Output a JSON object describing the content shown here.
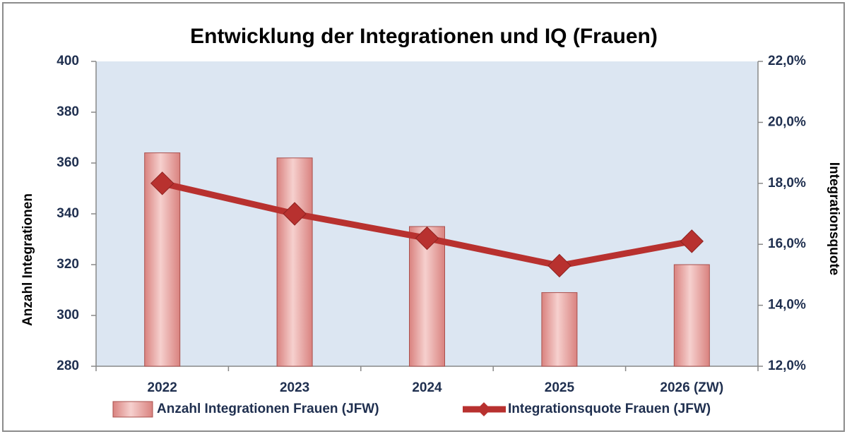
{
  "chart_data": {
    "type": "bar_line",
    "title": "Entwicklung der Integrationen und IQ (Frauen)",
    "y_label": "Anzahl Integrationen",
    "y2_label": "Integrationsquote",
    "categories": [
      "2022",
      "2023",
      "2024",
      "2025",
      "2026 (ZW)"
    ],
    "series": [
      {
        "name": "Anzahl Integrationen Frauen (JFW)",
        "type": "bar",
        "color": "#d9827f",
        "values": [
          364,
          362,
          335,
          309,
          320
        ]
      },
      {
        "name": "Integrationsquote Frauen (JFW)",
        "type": "line",
        "axis": "y2",
        "color": "#b8312f",
        "values": [
          18.0,
          17.0,
          16.2,
          15.3,
          16.1
        ]
      }
    ],
    "ylim": [
      280,
      400
    ],
    "yticks": [
      280,
      300,
      320,
      340,
      360,
      380,
      400
    ],
    "y2lim": [
      12,
      22
    ],
    "y2ticks": [
      {
        "value": 12,
        "label": "12,0%"
      },
      {
        "value": 14,
        "label": "14,0%"
      },
      {
        "value": 16,
        "label": "16,0%"
      },
      {
        "value": 18,
        "label": "18,0%"
      },
      {
        "value": 20,
        "label": "20,0%"
      },
      {
        "value": 22,
        "label": "22,0%"
      }
    ],
    "legend": "bottom"
  }
}
